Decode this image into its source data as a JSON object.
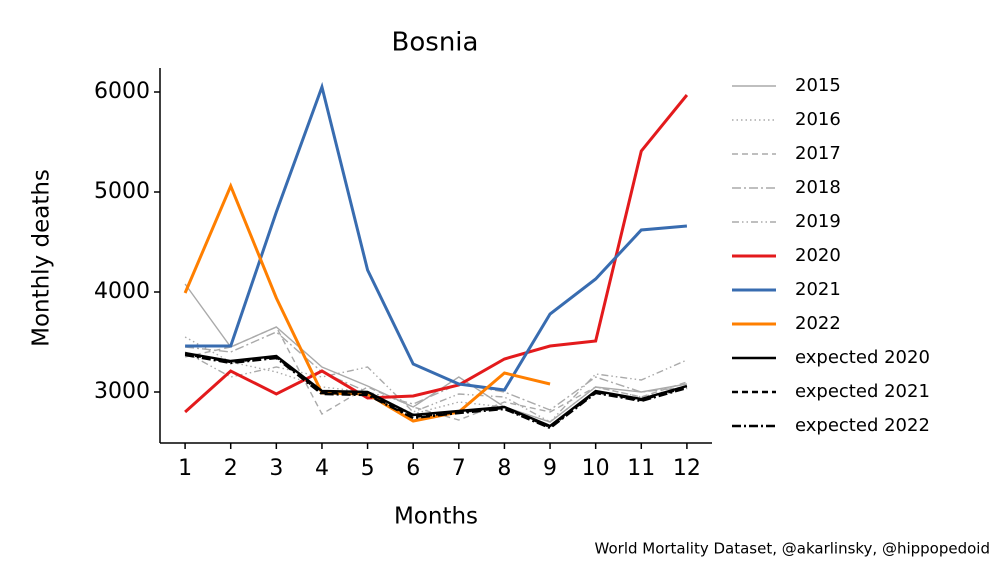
{
  "chart_data": {
    "type": "line",
    "title": "Bosnia",
    "xlabel": "Months",
    "ylabel": "Monthly deaths",
    "caption": "World Mortality Dataset, @akarlinsky, @hippopedoid",
    "x": [
      1,
      2,
      3,
      4,
      5,
      6,
      7,
      8,
      9,
      10,
      11,
      12
    ],
    "xlim": [
      0.45,
      12.55
    ],
    "xticks": [
      1,
      2,
      3,
      4,
      5,
      6,
      7,
      8,
      9,
      10,
      11,
      12
    ],
    "ylim": [
      2490,
      6240
    ],
    "yticks": [
      3000,
      4000,
      5000,
      6000
    ],
    "legend": "outside-right",
    "series": [
      {
        "name": "2015",
        "color": "#aaaaaa",
        "linestyle": "solid",
        "linewidth": 1.4,
        "values": [
          4080,
          3450,
          3650,
          3250,
          3060,
          2850,
          3150,
          2850,
          2700,
          3050,
          3000,
          3080
        ]
      },
      {
        "name": "2016",
        "color": "#aaaaaa",
        "linestyle": "dotted",
        "linewidth": 1.4,
        "values": [
          3550,
          3300,
          3200,
          3050,
          3000,
          2780,
          2900,
          2850,
          2700,
          3050,
          2950,
          3050
        ]
      },
      {
        "name": "2017",
        "color": "#aaaaaa",
        "linestyle": "dashed",
        "linewidth": 1.4,
        "values": [
          3350,
          3450,
          3650,
          2780,
          3050,
          2850,
          2720,
          2900,
          2800,
          3050,
          2950,
          3100
        ]
      },
      {
        "name": "2018",
        "color": "#aaaaaa",
        "linestyle": "dashdot",
        "linewidth": 1.4,
        "values": [
          3450,
          3400,
          3600,
          3200,
          3000,
          2880,
          3080,
          3000,
          2820,
          3150,
          3000,
          3050
        ]
      },
      {
        "name": "2019",
        "color": "#aaaaaa",
        "linestyle": "dashdotdot",
        "linewidth": 1.4,
        "values": [
          3400,
          3150,
          3250,
          3150,
          3250,
          2800,
          2980,
          2950,
          2700,
          3180,
          3120,
          3320
        ]
      },
      {
        "name": "2020",
        "color": "#e31a1c",
        "linestyle": "solid",
        "linewidth": 3,
        "values": [
          2800,
          3210,
          2980,
          3210,
          2940,
          2960,
          3070,
          3330,
          3460,
          3510,
          5410,
          5970
        ]
      },
      {
        "name": "2021",
        "color": "#386cb0",
        "linestyle": "solid",
        "linewidth": 3,
        "values": [
          3460,
          3460,
          4800,
          6050,
          4220,
          3280,
          3080,
          3020,
          3780,
          4130,
          4620,
          4660
        ]
      },
      {
        "name": "2022",
        "color": "#ff7f00",
        "linestyle": "solid",
        "linewidth": 3,
        "values": [
          3990,
          5060,
          3940,
          2990,
          2980,
          2710,
          2800,
          3190,
          3080,
          null,
          null,
          null
        ]
      },
      {
        "name": "expected 2020",
        "color": "#000000",
        "linestyle": "solid",
        "linewidth": 2.4,
        "values": [
          3390,
          3310,
          3360,
          3010,
          3000,
          2770,
          2810,
          2850,
          2660,
          3010,
          2930,
          3060
        ]
      },
      {
        "name": "expected 2021",
        "color": "#000000",
        "linestyle": "dashed",
        "linewidth": 2.4,
        "values": [
          3380,
          3300,
          3350,
          2990,
          2980,
          2750,
          2800,
          2840,
          2650,
          3000,
          2920,
          3050
        ]
      },
      {
        "name": "expected 2022",
        "color": "#000000",
        "linestyle": "dashdot",
        "linewidth": 2.4,
        "values": [
          3370,
          3290,
          3340,
          2980,
          2970,
          2740,
          2790,
          2830,
          2640,
          2990,
          2910,
          3040
        ]
      }
    ]
  }
}
